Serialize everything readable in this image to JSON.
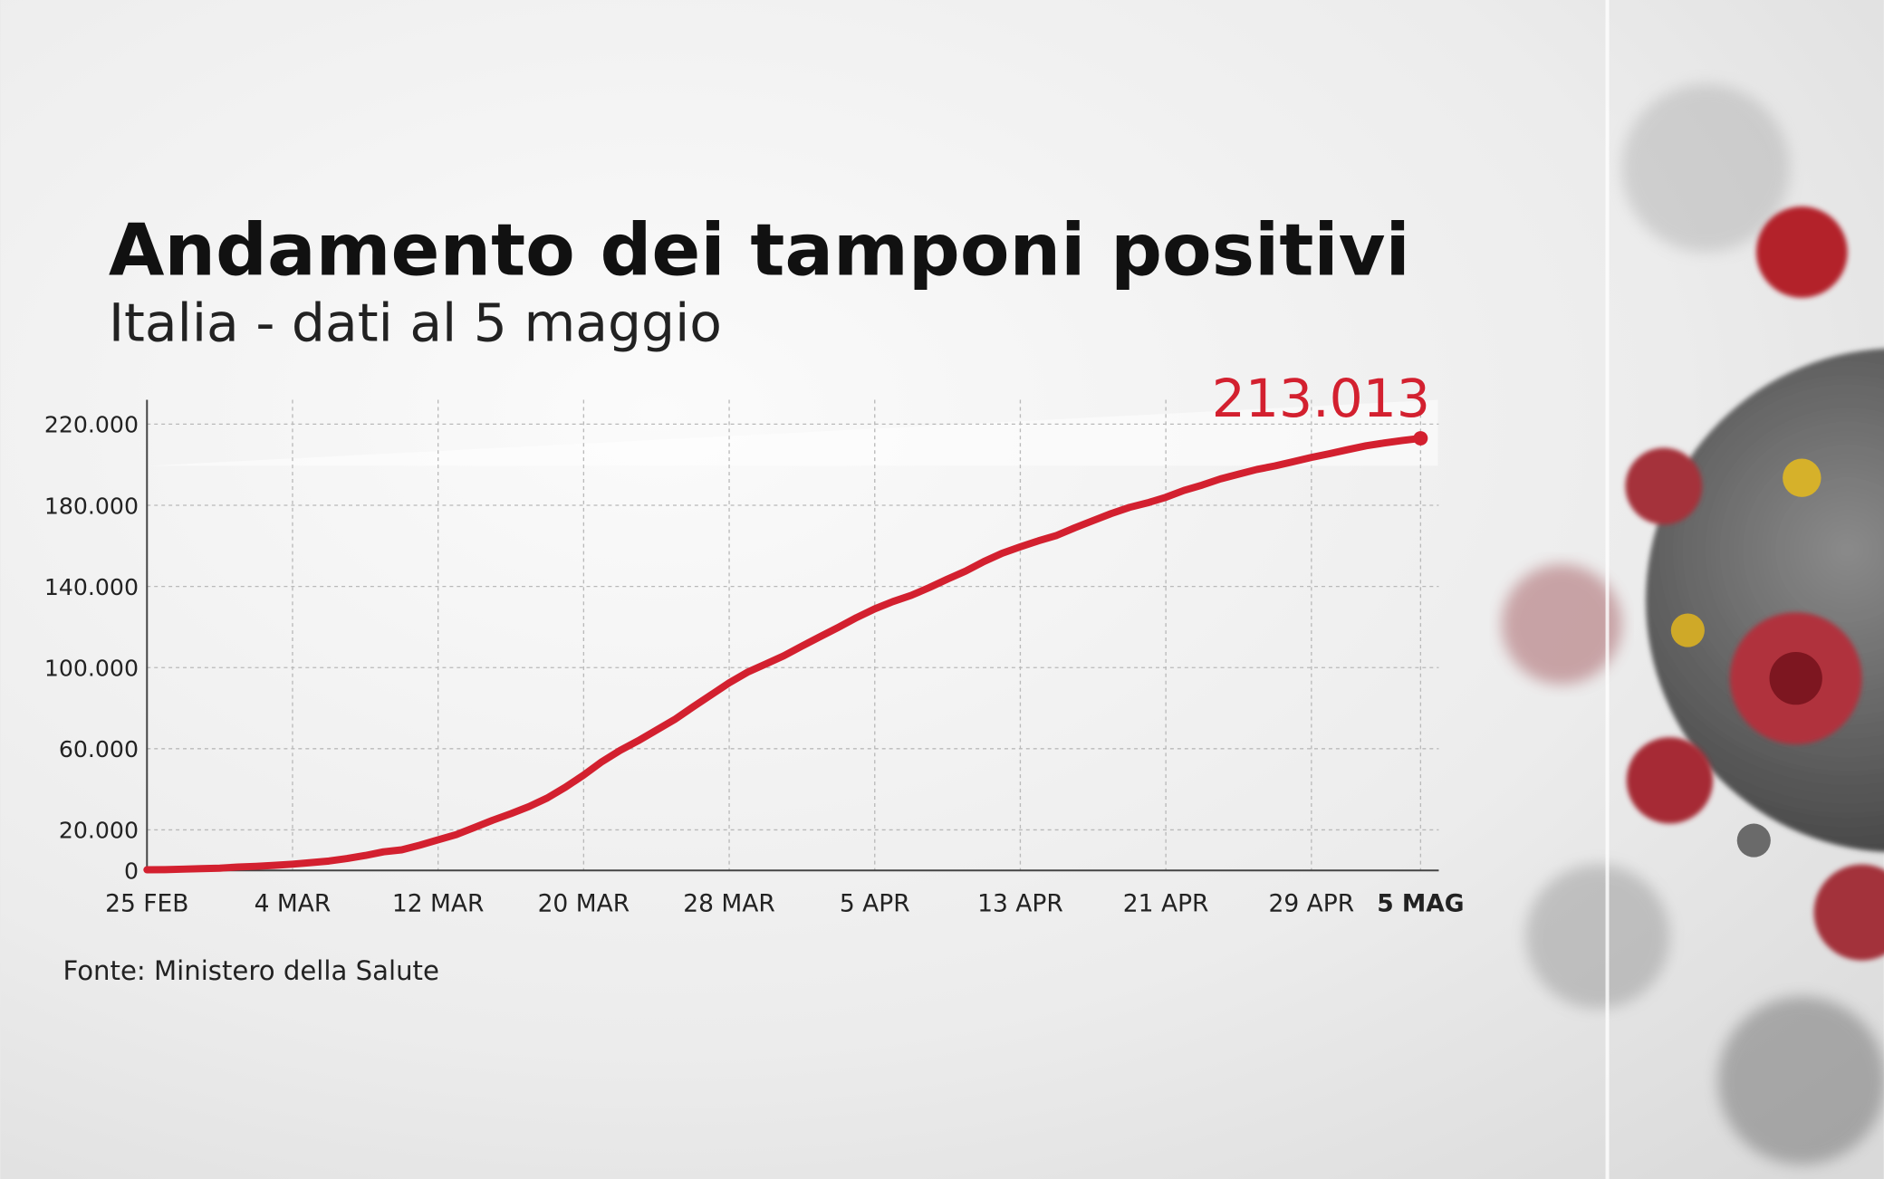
{
  "chart_data": {
    "type": "line",
    "title": "Andamento dei tamponi positivi",
    "subtitle": "Italia - dati al 5 maggio",
    "source": "Fonte: Ministero della Salute",
    "categories": [
      "25 FEB",
      null,
      null,
      null,
      null,
      null,
      null,
      null,
      "4 MAR",
      null,
      null,
      null,
      null,
      null,
      null,
      null,
      "12 MAR",
      null,
      null,
      null,
      null,
      null,
      null,
      null,
      "20 MAR",
      null,
      null,
      null,
      null,
      null,
      null,
      null,
      "28 MAR",
      null,
      null,
      null,
      null,
      null,
      null,
      null,
      "5 APR",
      null,
      null,
      null,
      null,
      null,
      null,
      null,
      "13 APR",
      null,
      null,
      null,
      null,
      null,
      null,
      null,
      "21 APR",
      null,
      null,
      null,
      null,
      null,
      null,
      null,
      "29 APR",
      null,
      null,
      null,
      null,
      null,
      "5 MAG"
    ],
    "series": [
      {
        "name": "Tamponi positivi",
        "color": "#d3202f",
        "values": [
          322,
          400,
          650,
          888,
          1128,
          1694,
          2036,
          2502,
          3089,
          3858,
          4636,
          5883,
          7375,
          9172,
          10149,
          12462,
          15113,
          17660,
          21157,
          24747,
          27980,
          31506,
          35713,
          41035,
          47021,
          53578,
          59138,
          63927,
          69176,
          74386,
          80539,
          86498,
          92472,
          97689,
          101739,
          105792,
          110574,
          115242,
          119827,
          124632,
          128948,
          132547,
          135586,
          139422,
          143626,
          147577,
          152271,
          156363,
          159516,
          162488,
          165155,
          168941,
          172434,
          175925,
          178972,
          181228,
          183957,
          187327,
          189973,
          192994,
          195351,
          197675,
          199414,
          201505,
          203591,
          205463,
          207428,
          209328,
          210717,
          211938,
          213013
        ],
        "value_labels": [
          null,
          null,
          null,
          null,
          null,
          null,
          null,
          null,
          null,
          null,
          null,
          null,
          null,
          null,
          null,
          null,
          null,
          null,
          null,
          null,
          null,
          null,
          null,
          null,
          null,
          null,
          null,
          null,
          null,
          null,
          null,
          null,
          null,
          null,
          null,
          null,
          null,
          null,
          null,
          null,
          null,
          null,
          null,
          null,
          null,
          null,
          null,
          null,
          null,
          null,
          null,
          null,
          null,
          null,
          null,
          null,
          null,
          null,
          null,
          null,
          null,
          null,
          null,
          null,
          null,
          null,
          null,
          null,
          null,
          null,
          "213.013"
        ]
      }
    ],
    "ylim": [
      0,
      232000
    ],
    "yticks": [
      {
        "value": 0,
        "label": "0"
      },
      {
        "value": 20000,
        "label": "20.000"
      },
      {
        "value": 60000,
        "label": "60.000"
      },
      {
        "value": 100000,
        "label": "100.000"
      },
      {
        "value": 140000,
        "label": "140.000"
      },
      {
        "value": 180000,
        "label": "180.000"
      },
      {
        "value": 220000,
        "label": "220.000"
      }
    ],
    "grid": true
  }
}
